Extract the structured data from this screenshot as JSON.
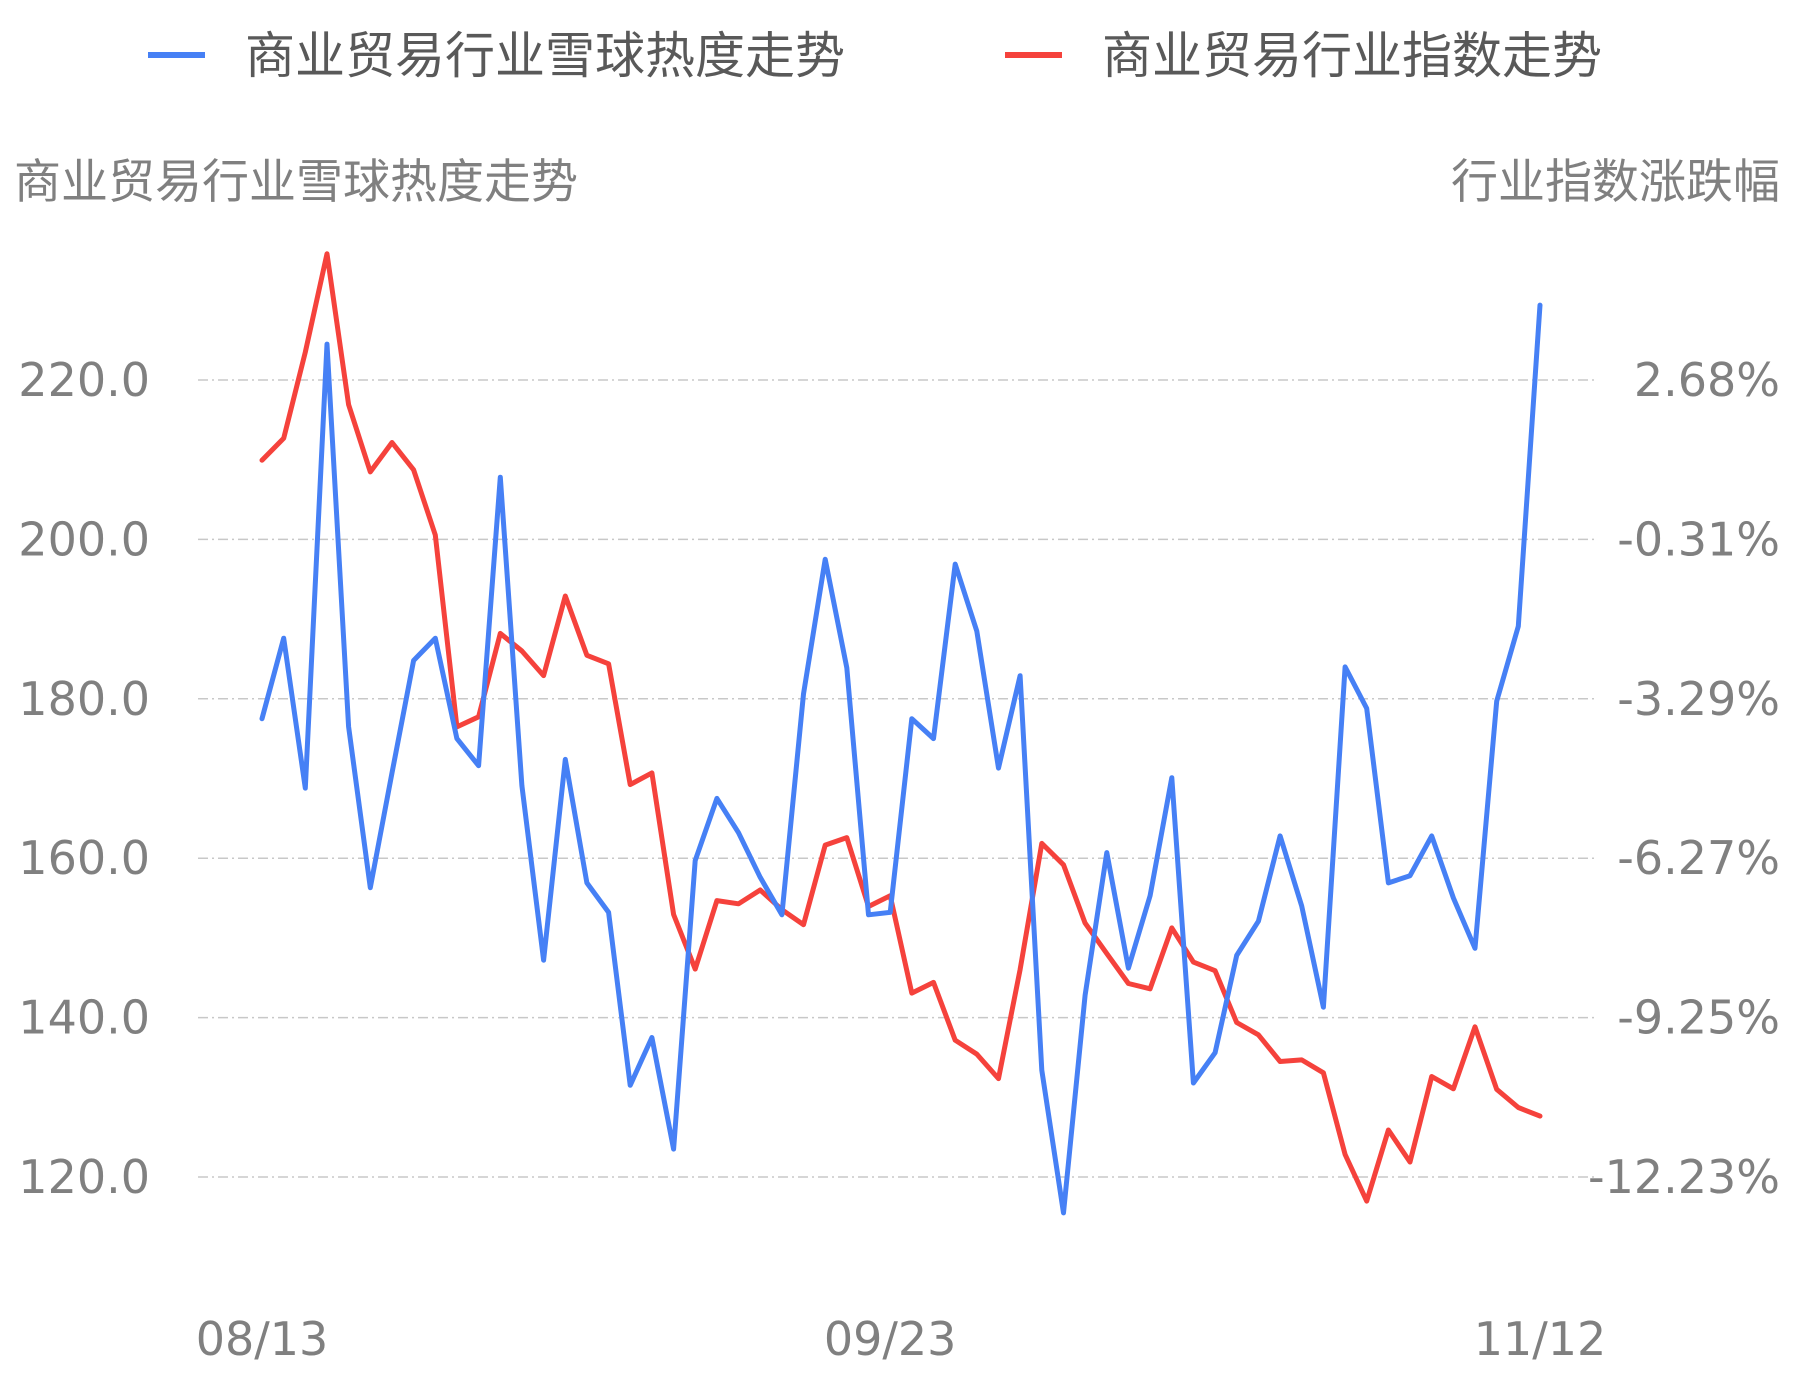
{
  "chart_data": {
    "type": "line",
    "legend": {
      "position": "top",
      "entries": [
        {
          "label": "商业贸易行业雪球热度走势",
          "color": "#4680F5"
        },
        {
          "label": "商业贸易行业指数走势",
          "color": "#F5423C"
        }
      ]
    },
    "y_left": {
      "title": "商业贸易行业雪球热度走势",
      "ticks": [
        "220.0",
        "200.0",
        "180.0",
        "160.0",
        "140.0",
        "120.0"
      ],
      "range": [
        120,
        220
      ]
    },
    "y_right": {
      "title": "行业指数涨跌幅",
      "ticks": [
        "2.68%",
        "-0.31%",
        "-3.29%",
        "-6.27%",
        "-9.25%",
        "-12.23%"
      ],
      "range": [
        -12.23,
        2.68
      ]
    },
    "x_ticks": [
      {
        "label": "08/13",
        "index": 0
      },
      {
        "label": "09/23",
        "index": 29
      },
      {
        "label": "11/12",
        "index": 59
      }
    ],
    "grid": "horizontal dashed",
    "series": [
      {
        "name": "商业贸易行业雪球热度走势",
        "axis": "left",
        "color": "#4680F5",
        "values": [
          177.5,
          187.6,
          168.8,
          224.5,
          176.5,
          156.3,
          170.7,
          184.8,
          187.6,
          175.0,
          171.6,
          207.8,
          169.1,
          147.2,
          172.4,
          156.9,
          153.2,
          131.5,
          137.5,
          123.5,
          159.7,
          167.5,
          163.2,
          157.6,
          152.9,
          180.6,
          197.5,
          183.9,
          152.9,
          153.2,
          177.5,
          175.0,
          196.9,
          188.5,
          171.3,
          182.9,
          133.4,
          115.5,
          142.8,
          160.7,
          146.2,
          155.3,
          170.1,
          131.8,
          135.6,
          147.8,
          152.1,
          162.8,
          154.0,
          141.3,
          184.0,
          178.8,
          156.9,
          157.8,
          162.8,
          155.0,
          148.7,
          179.7,
          189.1,
          229.4
        ]
      },
      {
        "name": "商业贸易行业指数走势",
        "axis": "right",
        "color": "#F5423C",
        "values": [
          1.18,
          1.59,
          3.2,
          5.04,
          2.22,
          0.96,
          1.51,
          1.0,
          -0.22,
          -3.81,
          -3.62,
          -2.06,
          -2.39,
          -2.85,
          -1.36,
          -2.47,
          -2.63,
          -4.89,
          -4.67,
          -7.32,
          -8.34,
          -7.06,
          -7.12,
          -6.86,
          -7.23,
          -7.51,
          -6.02,
          -5.88,
          -7.17,
          -6.97,
          -8.79,
          -8.59,
          -9.67,
          -9.93,
          -10.39,
          -8.35,
          -5.99,
          -6.39,
          -7.48,
          -8.05,
          -8.61,
          -8.71,
          -7.57,
          -8.21,
          -8.37,
          -9.34,
          -9.57,
          -10.07,
          -10.04,
          -10.28,
          -11.81,
          -12.68,
          -11.35,
          -11.95,
          -10.35,
          -10.58,
          -9.42,
          -10.59,
          -10.93,
          -11.09
        ]
      }
    ]
  }
}
